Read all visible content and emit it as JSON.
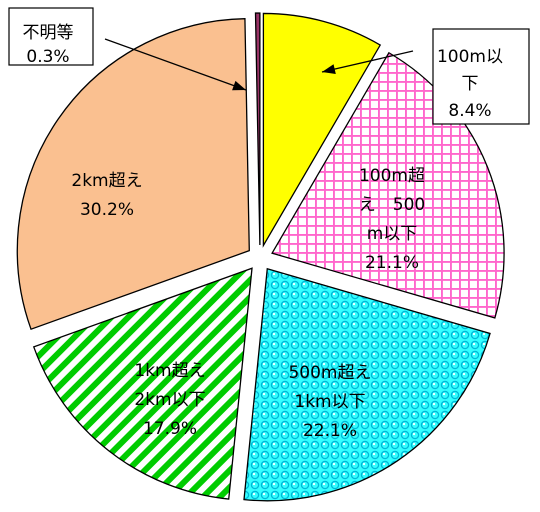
{
  "chart_data": {
    "type": "pie",
    "title": "",
    "exploded": true,
    "start": "12 o'clock",
    "direction": "clockwise",
    "slices": [
      {
        "label": "100m以下",
        "label_lines": [
          "100m以",
          "下",
          "8.4%"
        ],
        "value": 8.4,
        "fill": "#ffff00",
        "pattern": "solid",
        "label_style": "boxed-outside"
      },
      {
        "label": "100m超え500m以下",
        "label_lines": [
          "100m超",
          "え　500",
          "m以下",
          "21.1%"
        ],
        "value": 21.1,
        "fill": "#ffffff",
        "pattern": "pink-grid",
        "pattern_color": "#ff66cc",
        "label_style": "inside"
      },
      {
        "label": "500m超え1km以下",
        "label_lines": [
          "500m超え",
          "1km以下",
          "22.1%"
        ],
        "value": 22.1,
        "fill": "#33ffff",
        "pattern": "cyan-circles",
        "pattern_color": "#00c0e0",
        "label_style": "inside"
      },
      {
        "label": "1km超え2km以下",
        "label_lines": [
          "1km超え",
          "2km以下",
          "17.9%"
        ],
        "value": 17.9,
        "fill": "#ffffff",
        "pattern": "green-diagonal",
        "pattern_color": "#00cc00",
        "label_style": "inside"
      },
      {
        "label": "2km超え",
        "label_lines": [
          "2km超え",
          "30.2%"
        ],
        "value": 30.2,
        "fill": "#fac090",
        "pattern": "solid",
        "label_style": "inside"
      },
      {
        "label": "不明等",
        "label_lines": [
          "不明等",
          "0.3%"
        ],
        "value": 0.3,
        "fill": "#993366",
        "pattern": "solid",
        "label_style": "boxed-outside"
      }
    ]
  }
}
